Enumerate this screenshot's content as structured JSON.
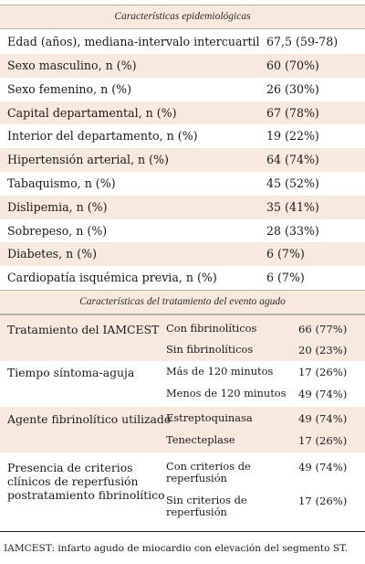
{
  "epidemiological": {
    "heading": "Características epidemiológicas",
    "rows": [
      {
        "label": "Edad (años), mediana-intervalo intercuartil",
        "value": "67,5 (59-78)"
      },
      {
        "label": "Sexo masculino, n (%)",
        "value": "60 (70%)"
      },
      {
        "label": "Sexo femenino, n (%)",
        "value": "26 (30%)"
      },
      {
        "label": "Capital departamental, n (%)",
        "value": "67 (78%)"
      },
      {
        "label": "Interior del departamento, n (%)",
        "value": "19 (22%)"
      },
      {
        "label": "Hipertensión arterial, n (%)",
        "value": "64 (74%)"
      },
      {
        "label": "Tabaquismo, n (%)",
        "value": "45 (52%)"
      },
      {
        "label": "Dislipemia, n (%)",
        "value": "35 (41%)"
      },
      {
        "label": "Sobrepeso, n (%)",
        "value": "28 (33%)"
      },
      {
        "label": "Diabetes, n (%)",
        "value": "6 (7%)"
      },
      {
        "label": "Cardiopatía isquémica previa, n (%)",
        "value": "6 (7%)"
      }
    ]
  },
  "treatment": {
    "heading": "Características del tratamiento del evento agudo",
    "groups": [
      {
        "label": "Tratamiento del IAMCEST",
        "items": [
          {
            "label": "Con fibrinolíticos",
            "value": "66 (77%)"
          },
          {
            "label": "Sin fibrinolíticos",
            "value": "20 (23%)"
          }
        ]
      },
      {
        "label": "Tiempo síntoma-aguja",
        "items": [
          {
            "label": "Más de 120 minutos",
            "value": "17 (26%)"
          },
          {
            "label": "Menos de 120 minutos",
            "value": "49 (74%)"
          }
        ]
      },
      {
        "label": "Agente fibrinolítico utilizado",
        "items": [
          {
            "label": "Estreptoquinasa",
            "value": "49 (74%)"
          },
          {
            "label": "Tenecteplase",
            "value": "17 (26%)"
          }
        ]
      },
      {
        "label_lines": [
          "Presencia de criterios",
          "clínicos de reperfusión",
          "postratamiento fibrinolítico"
        ],
        "items": [
          {
            "label_lines": [
              "Con criterios de",
              "reperfusión"
            ],
            "value": "49 (74%)"
          },
          {
            "label_lines": [
              "Sin criterios de",
              "reperfusión"
            ],
            "value": "17 (26%)"
          }
        ]
      }
    ]
  },
  "footnote": "IAMCEST: infarto agudo de miocardio con elevación del segmento ST."
}
